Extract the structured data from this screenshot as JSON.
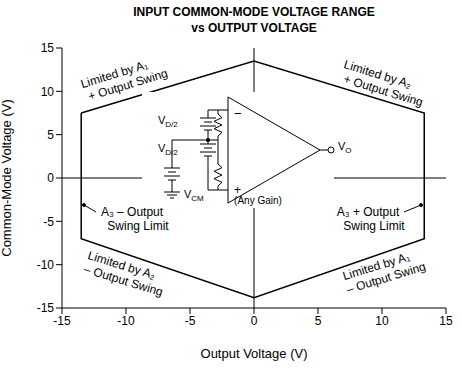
{
  "chart_data": {
    "type": "line",
    "title": "INPUT COMMON-MODE VOLTAGE RANGE",
    "subtitle": "vs OUTPUT VOLTAGE",
    "x_label": "Output Voltage (V)",
    "y_label": "Common-Mode Voltage (V)",
    "x": [
      -13.5,
      0,
      13.3,
      13.3,
      0,
      -13.5
    ],
    "values": [
      7.5,
      13.5,
      7.5,
      -7,
      -13.8,
      -7
    ],
    "color": "#000000",
    "xlim": [
      -15,
      15
    ],
    "xticks": [
      -15,
      -10,
      -5,
      0,
      5,
      10,
      15
    ],
    "ylim": [
      -15,
      15
    ],
    "yticks": [
      -15,
      -10,
      -5,
      0,
      5,
      10,
      15
    ],
    "grid": false,
    "annotations": [
      {
        "text": [
          "Limited by A₁",
          "+ Output Swing"
        ]
      },
      {
        "text": [
          "Limited by A₂",
          "+ Output Swing"
        ]
      },
      {
        "text": [
          "A₃ – Output",
          "Swing Limit"
        ]
      },
      {
        "text": [
          "A₃ + Output",
          "Swing Limit"
        ]
      },
      {
        "text": [
          "Limited by A₂",
          "– Output Swing"
        ]
      },
      {
        "text": [
          "Limited by A₁",
          "– Output Swing"
        ]
      }
    ],
    "schematic": {
      "inputs": [
        "−",
        "+"
      ],
      "sources": [
        {
          "main": "V",
          "sub": "D/2"
        },
        {
          "main": "V",
          "sub": "D/2"
        },
        {
          "main": "V",
          "sub": "CM"
        }
      ],
      "output": {
        "main": "V",
        "sub": "O"
      },
      "gain": "(Any Gain)"
    }
  }
}
